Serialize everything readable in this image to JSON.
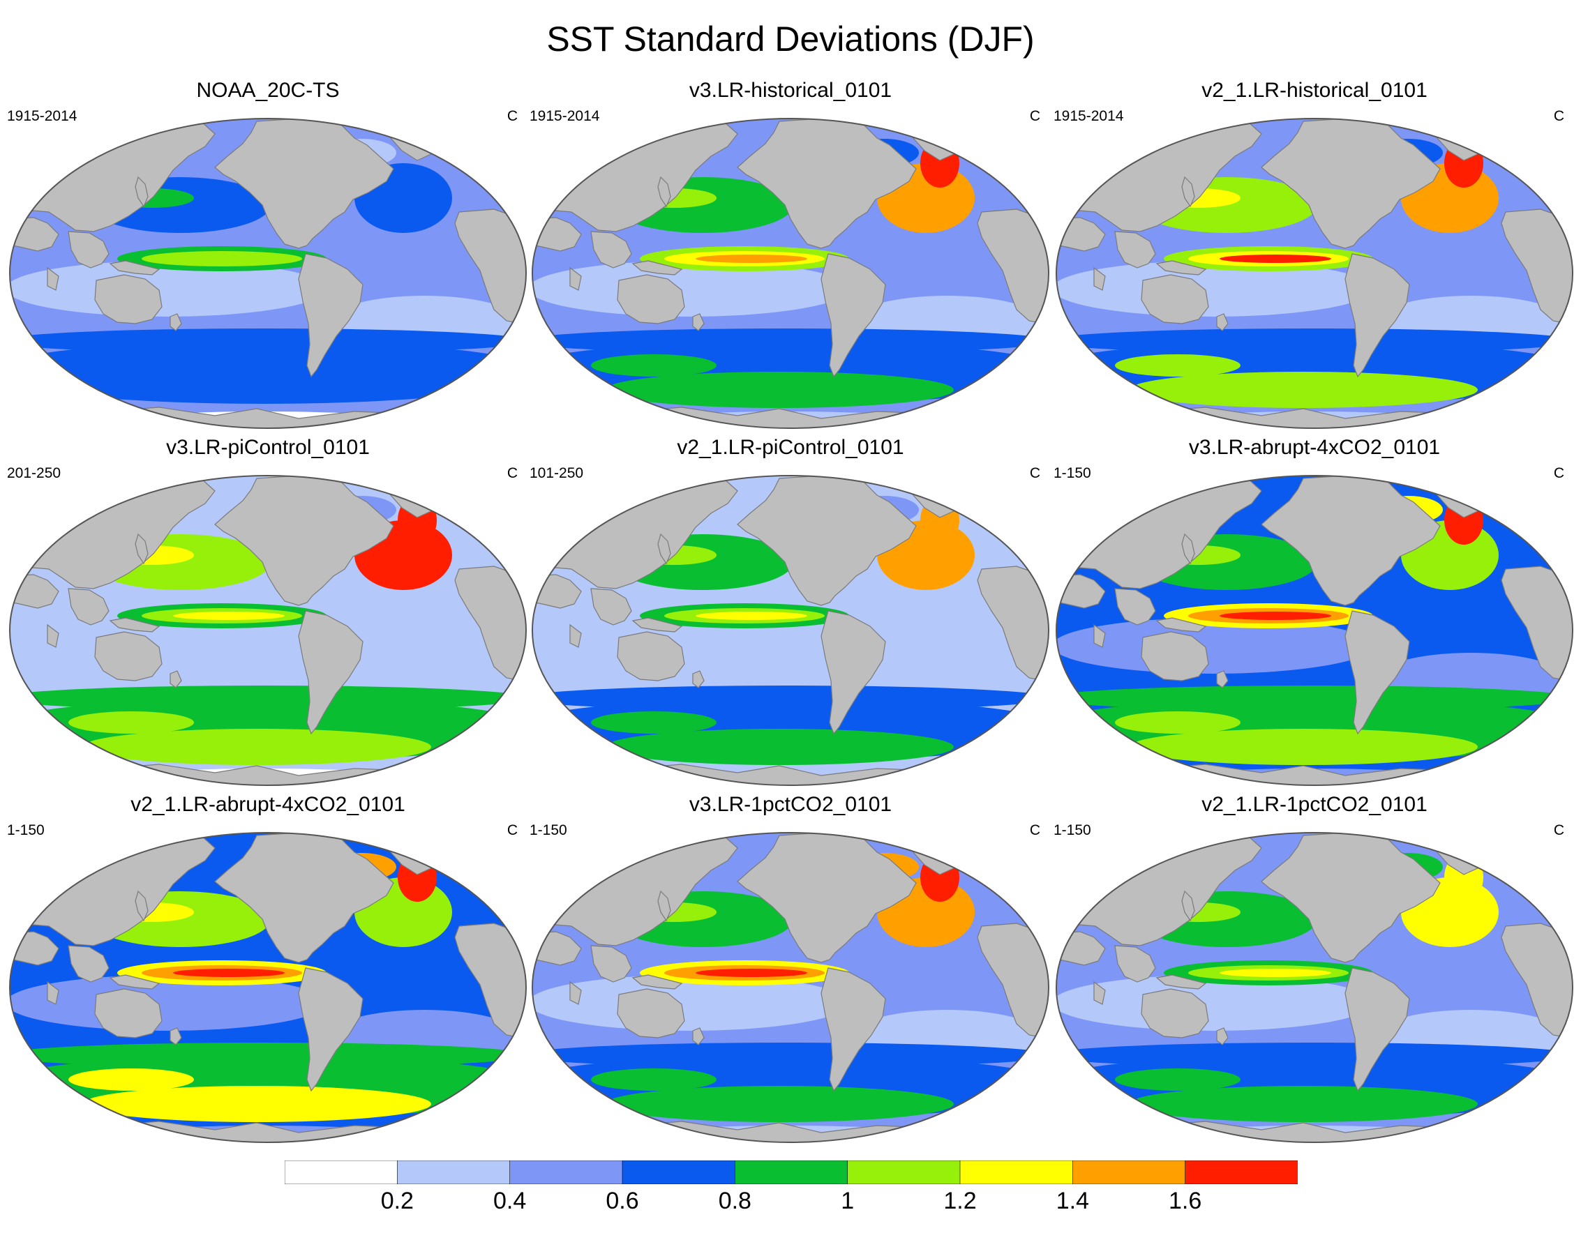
{
  "title": "SST Standard Deviations (DJF)",
  "colors": {
    "land": "#bebebe",
    "coast": "#7a7a7a",
    "outline": "#555555"
  },
  "panels": [
    {
      "title": "NOAA_20C-TS",
      "period": "1915-2014",
      "units": "C",
      "style": "obs"
    },
    {
      "title": "v3.LR-historical_0101",
      "period": "1915-2014",
      "units": "C",
      "style": "hist3"
    },
    {
      "title": "v2_1.LR-historical_0101",
      "period": "1915-2014",
      "units": "C",
      "style": "hist2"
    },
    {
      "title": "v3.LR-piControl_0101",
      "period": "201-250",
      "units": "C",
      "style": "pic3"
    },
    {
      "title": "v2_1.LR-piControl_0101",
      "period": "101-250",
      "units": "C",
      "style": "pic2"
    },
    {
      "title": "v3.LR-abrupt-4xCO2_0101",
      "period": "1-150",
      "units": "C",
      "style": "abr3"
    },
    {
      "title": "v2_1.LR-abrupt-4xCO2_0101",
      "period": "1-150",
      "units": "C",
      "style": "abr2"
    },
    {
      "title": "v3.LR-1pctCO2_0101",
      "period": "1-150",
      "units": "C",
      "style": "pct3"
    },
    {
      "title": "v2_1.LR-1pctCO2_0101",
      "period": "1-150",
      "units": "C",
      "style": "pct2"
    }
  ],
  "colorbar": {
    "labels": [
      "0.2",
      "0.4",
      "0.6",
      "0.8",
      "1",
      "1.2",
      "1.4",
      "1.6"
    ],
    "levels": [
      0.2,
      0.4,
      0.6,
      0.8,
      1.0,
      1.2,
      1.4,
      1.6
    ],
    "colors": [
      "#ffffff",
      "#b4c8fa",
      "#7e96f6",
      "#0a5af0",
      "#0abe32",
      "#96f00a",
      "#ffff00",
      "#ffa000",
      "#ff1e00"
    ]
  }
}
